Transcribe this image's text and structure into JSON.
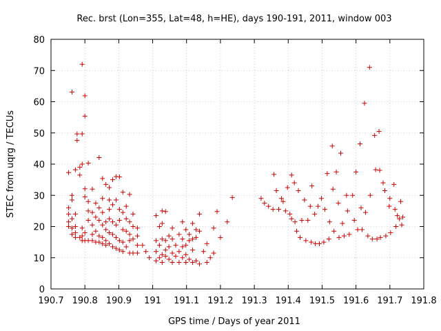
{
  "chart_data": {
    "type": "scatter",
    "title": "Rec. brst (Lon=355, Lat=48, h=HE), days 190-191, 2011, window 003",
    "xlabel": "GPS time / Days of year 2011",
    "ylabel": "STEC from uqrg / TECUs",
    "xlim": [
      190.7,
      191.8
    ],
    "ylim": [
      0,
      80
    ],
    "x_ticks": [
      "190.7",
      "190.8",
      "190.9",
      "191",
      "191.1",
      "191.2",
      "191.3",
      "191.4",
      "191.5",
      "191.6",
      "191.7",
      "191.8"
    ],
    "y_ticks": [
      "0",
      "10",
      "20",
      "30",
      "40",
      "50",
      "60",
      "70",
      "80"
    ],
    "grid": true,
    "marker": "+",
    "color": "#cc0000",
    "points": [
      [
        190.752,
        37.3
      ],
      [
        190.752,
        26.0
      ],
      [
        190.752,
        24.0
      ],
      [
        190.752,
        21.5
      ],
      [
        190.752,
        20.0
      ],
      [
        190.762,
        63.1
      ],
      [
        190.762,
        30.0
      ],
      [
        190.762,
        28.5
      ],
      [
        190.762,
        22.5
      ],
      [
        190.762,
        19.5
      ],
      [
        190.762,
        17.5
      ],
      [
        190.772,
        38.2
      ],
      [
        190.772,
        24.0
      ],
      [
        190.772,
        20.0
      ],
      [
        190.772,
        18.0
      ],
      [
        190.772,
        16.5
      ],
      [
        190.777,
        49.7
      ],
      [
        190.777,
        47.6
      ],
      [
        190.785,
        39.0
      ],
      [
        190.785,
        36.5
      ],
      [
        190.785,
        16.5
      ],
      [
        190.792,
        72.0
      ],
      [
        190.792,
        49.7
      ],
      [
        190.792,
        40.0
      ],
      [
        190.792,
        19.5
      ],
      [
        190.792,
        17.0
      ],
      [
        190.792,
        15.5
      ],
      [
        190.8,
        61.9
      ],
      [
        190.8,
        55.4
      ],
      [
        190.8,
        32.1
      ],
      [
        190.8,
        29.5
      ],
      [
        190.8,
        18.0
      ],
      [
        190.8,
        15.5
      ],
      [
        190.81,
        40.3
      ],
      [
        190.81,
        28.0
      ],
      [
        190.81,
        25.0
      ],
      [
        190.81,
        22.0
      ],
      [
        190.81,
        15.5
      ],
      [
        190.822,
        32.0
      ],
      [
        190.822,
        24.5
      ],
      [
        190.822,
        20.5
      ],
      [
        190.822,
        17.5
      ],
      [
        190.822,
        15.5
      ],
      [
        190.832,
        27.5
      ],
      [
        190.832,
        23.0
      ],
      [
        190.832,
        18.5
      ],
      [
        190.832,
        15.0
      ],
      [
        190.842,
        42.1
      ],
      [
        190.842,
        26.0
      ],
      [
        190.842,
        22.0
      ],
      [
        190.842,
        17.0
      ],
      [
        190.842,
        15.0
      ],
      [
        190.852,
        35.4
      ],
      [
        190.852,
        29.0
      ],
      [
        190.852,
        24.5
      ],
      [
        190.852,
        20.5
      ],
      [
        190.852,
        16.5
      ],
      [
        190.852,
        14.5
      ],
      [
        190.862,
        33.5
      ],
      [
        190.862,
        21.5
      ],
      [
        190.862,
        19.0
      ],
      [
        190.862,
        15.5
      ],
      [
        190.862,
        14.0
      ],
      [
        190.872,
        32.5
      ],
      [
        190.872,
        28.5
      ],
      [
        190.872,
        25.5
      ],
      [
        190.872,
        22.5
      ],
      [
        190.872,
        18.0
      ],
      [
        190.872,
        14.5
      ],
      [
        190.882,
        35.0
      ],
      [
        190.882,
        27.0
      ],
      [
        190.882,
        21.5
      ],
      [
        190.882,
        17.5
      ],
      [
        190.882,
        13.5
      ],
      [
        190.892,
        36.0
      ],
      [
        190.892,
        28.5
      ],
      [
        190.892,
        20.5
      ],
      [
        190.892,
        16.5
      ],
      [
        190.892,
        13.0
      ],
      [
        190.902,
        35.9
      ],
      [
        190.902,
        25.5
      ],
      [
        190.902,
        22.0
      ],
      [
        190.902,
        15.5
      ],
      [
        190.902,
        12.5
      ],
      [
        190.912,
        31.0
      ],
      [
        190.912,
        24.5
      ],
      [
        190.912,
        19.0
      ],
      [
        190.912,
        15.0
      ],
      [
        190.912,
        12.0
      ],
      [
        190.922,
        26.5
      ],
      [
        190.922,
        22.5
      ],
      [
        190.922,
        18.5
      ],
      [
        190.922,
        13.5
      ],
      [
        190.932,
        30.3
      ],
      [
        190.932,
        21.5
      ],
      [
        190.932,
        17.5
      ],
      [
        190.932,
        15.5
      ],
      [
        190.932,
        11.5
      ],
      [
        190.942,
        24.0
      ],
      [
        190.942,
        20.0
      ],
      [
        190.942,
        16.0
      ],
      [
        190.942,
        11.5
      ],
      [
        190.955,
        19.5
      ],
      [
        190.955,
        17.0
      ],
      [
        190.955,
        14.0
      ],
      [
        190.955,
        11.5
      ],
      [
        190.97,
        14.0
      ],
      [
        190.98,
        12.0
      ],
      [
        190.99,
        10.0
      ],
      [
        191.01,
        23.5
      ],
      [
        191.01,
        15.5
      ],
      [
        191.01,
        12.0
      ],
      [
        191.01,
        9.0
      ],
      [
        191.02,
        20.0
      ],
      [
        191.02,
        14.0
      ],
      [
        191.02,
        10.0
      ],
      [
        191.028,
        25.0
      ],
      [
        191.028,
        21.0
      ],
      [
        191.028,
        16.0
      ],
      [
        191.028,
        11.0
      ],
      [
        191.028,
        8.5
      ],
      [
        191.038,
        24.8
      ],
      [
        191.038,
        15.5
      ],
      [
        191.038,
        12.5
      ],
      [
        191.038,
        10.5
      ],
      [
        191.048,
        17.0
      ],
      [
        191.048,
        13.5
      ],
      [
        191.048,
        9.5
      ],
      [
        191.058,
        19.5
      ],
      [
        191.058,
        16.0
      ],
      [
        191.058,
        11.5
      ],
      [
        191.058,
        8.5
      ],
      [
        191.068,
        14.0
      ],
      [
        191.068,
        10.5
      ],
      [
        191.078,
        17.5
      ],
      [
        191.078,
        12.0
      ],
      [
        191.078,
        8.5
      ],
      [
        191.088,
        21.5
      ],
      [
        191.088,
        16.0
      ],
      [
        191.088,
        13.5
      ],
      [
        191.088,
        10.0
      ],
      [
        191.098,
        19.0
      ],
      [
        191.098,
        14.0
      ],
      [
        191.098,
        11.0
      ],
      [
        191.098,
        8.5
      ],
      [
        191.108,
        17.5
      ],
      [
        191.108,
        15.5
      ],
      [
        191.108,
        9.5
      ],
      [
        191.118,
        21.0
      ],
      [
        191.118,
        16.0
      ],
      [
        191.118,
        12.5
      ],
      [
        191.118,
        8.5
      ],
      [
        191.128,
        19.0
      ],
      [
        191.128,
        16.5
      ],
      [
        191.128,
        9.0
      ],
      [
        191.138,
        24.0
      ],
      [
        191.138,
        18.5
      ],
      [
        191.138,
        8.0
      ],
      [
        191.15,
        12.0
      ],
      [
        191.16,
        14.5
      ],
      [
        191.16,
        8.5
      ],
      [
        191.17,
        10.0
      ],
      [
        191.18,
        19.5
      ],
      [
        191.18,
        11.5
      ],
      [
        191.19,
        24.8
      ],
      [
        191.2,
        16.5
      ],
      [
        191.22,
        21.5
      ],
      [
        191.235,
        29.3
      ],
      [
        191.32,
        29.0
      ],
      [
        191.33,
        27.5
      ],
      [
        191.342,
        26.5
      ],
      [
        191.355,
        25.5
      ],
      [
        191.358,
        36.7
      ],
      [
        191.365,
        31.5
      ],
      [
        191.372,
        25.5
      ],
      [
        191.38,
        29.0
      ],
      [
        191.385,
        28.0
      ],
      [
        191.392,
        25.0
      ],
      [
        191.398,
        32.5
      ],
      [
        191.405,
        24.0
      ],
      [
        191.41,
        36.5
      ],
      [
        191.41,
        22.5
      ],
      [
        191.418,
        34.0
      ],
      [
        191.42,
        21.5
      ],
      [
        191.425,
        18.5
      ],
      [
        191.43,
        31.5
      ],
      [
        191.435,
        16.5
      ],
      [
        191.44,
        22.0
      ],
      [
        191.448,
        28.5
      ],
      [
        191.452,
        15.5
      ],
      [
        191.458,
        22.0
      ],
      [
        191.465,
        26.5
      ],
      [
        191.468,
        15.0
      ],
      [
        191.47,
        33.0
      ],
      [
        191.478,
        24.0
      ],
      [
        191.48,
        14.5
      ],
      [
        191.488,
        26.5
      ],
      [
        191.492,
        14.5
      ],
      [
        191.498,
        29.0
      ],
      [
        191.505,
        15.0
      ],
      [
        191.508,
        25.5
      ],
      [
        191.515,
        37.0
      ],
      [
        191.52,
        16.0
      ],
      [
        191.522,
        21.5
      ],
      [
        191.53,
        45.8
      ],
      [
        191.532,
        32.0
      ],
      [
        191.535,
        18.5
      ],
      [
        191.542,
        37.5
      ],
      [
        191.548,
        27.5
      ],
      [
        191.55,
        16.5
      ],
      [
        191.555,
        43.5
      ],
      [
        191.56,
        21.0
      ],
      [
        191.565,
        17.0
      ],
      [
        191.572,
        30.0
      ],
      [
        191.575,
        25.0
      ],
      [
        191.58,
        17.5
      ],
      [
        191.59,
        30.0
      ],
      [
        191.595,
        22.0
      ],
      [
        191.6,
        37.5
      ],
      [
        191.605,
        19.0
      ],
      [
        191.612,
        46.5
      ],
      [
        191.615,
        26.0
      ],
      [
        191.618,
        19.0
      ],
      [
        191.625,
        59.5
      ],
      [
        191.628,
        24.5
      ],
      [
        191.635,
        17.0
      ],
      [
        191.64,
        71.0
      ],
      [
        191.642,
        30.0
      ],
      [
        191.648,
        16.0
      ],
      [
        191.655,
        49.2
      ],
      [
        191.658,
        38.2
      ],
      [
        191.662,
        16.0
      ],
      [
        191.668,
        50.5
      ],
      [
        191.67,
        38.0
      ],
      [
        191.672,
        16.5
      ],
      [
        191.68,
        34.0
      ],
      [
        191.685,
        31.5
      ],
      [
        191.688,
        17.0
      ],
      [
        191.698,
        26.5
      ],
      [
        191.7,
        29.0
      ],
      [
        191.702,
        18.0
      ],
      [
        191.712,
        33.5
      ],
      [
        191.715,
        25.5
      ],
      [
        191.718,
        20.0
      ],
      [
        191.722,
        23.5
      ],
      [
        191.728,
        22.5
      ],
      [
        191.732,
        28.0
      ],
      [
        191.735,
        20.5
      ],
      [
        191.738,
        23.0
      ]
    ]
  }
}
